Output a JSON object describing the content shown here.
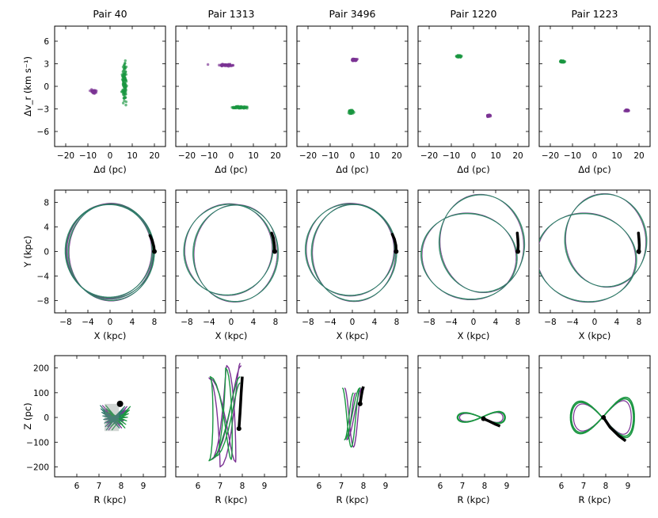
{
  "colors": {
    "purple": "#7b3294",
    "green": "#1a9641",
    "teal": "#2c7a6e",
    "black": "#000000"
  },
  "chart_data": {
    "type": "scatter",
    "pairs": [
      {
        "title": "Pair 40",
        "row1": {
          "purple": {
            "center": [
              -7.5,
              -0.7
            ],
            "spread": [
              1.2,
              0.25
            ],
            "n": 45
          },
          "green": {
            "center": [
              6.5,
              0.5
            ],
            "spread": [
              1.0,
              2.4
            ],
            "n": 110
          }
        },
        "row2": {
          "ellipses": [
            {
              "cx": 0,
              "cy": 0,
              "rx": 7.9,
              "ry": 7.7,
              "rot": 0
            },
            {
              "cx": 0.2,
              "cy": -0.1,
              "rx": 7.7,
              "ry": 7.9,
              "rot": 0
            },
            {
              "cx": -0.2,
              "cy": 0.1,
              "rx": 7.8,
              "ry": 7.6,
              "rot": 0
            }
          ],
          "arc": {
            "x": [
              7.2,
              7.6,
              7.9,
              8.0
            ],
            "y": [
              2.6,
              1.8,
              0.8,
              0.0
            ]
          },
          "dot": [
            8.0,
            0.0
          ]
        },
        "row3": {
          "shape": "band",
          "dot": [
            7.95,
            55
          ]
        }
      },
      {
        "title": "Pair 1313",
        "row1": {
          "purple": {
            "center": [
              -2.0,
              2.8
            ],
            "spread": [
              2.8,
              0.12
            ],
            "n": 60
          },
          "green": {
            "center": [
              3.5,
              -2.8
            ],
            "spread": [
              3.5,
              0.12
            ],
            "n": 90
          }
        },
        "row2": {
          "ellipses": [
            {
              "cx": -0.5,
              "cy": 0.3,
              "rx": 8.0,
              "ry": 7.4,
              "rot": 0.2
            },
            {
              "cx": 0.8,
              "cy": -0.3,
              "rx": 7.6,
              "ry": 7.9,
              "rot": -0.2
            }
          ],
          "arc": {
            "x": [
              7.3,
              7.6,
              7.8,
              7.85
            ],
            "y": [
              3.0,
              2.2,
              1.0,
              0.0
            ]
          },
          "dot": [
            7.85,
            0.0
          ]
        },
        "row3": {
          "shape": "tall",
          "dot": [
            7.85,
            -45
          ],
          "arc": {
            "x": [
              7.85,
              7.9,
              7.95,
              8.0
            ],
            "y": [
              -45,
              20,
              100,
              165
            ]
          }
        }
      },
      {
        "title": "Pair 3496",
        "row1": {
          "purple": {
            "center": [
              0.8,
              3.5
            ],
            "spread": [
              1.2,
              0.15
            ],
            "n": 50
          },
          "green": {
            "center": [
              -0.5,
              -3.4
            ],
            "spread": [
              1.0,
              0.25
            ],
            "n": 60
          }
        },
        "row2": {
          "ellipses": [
            {
              "cx": -0.4,
              "cy": 0.3,
              "rx": 8.0,
              "ry": 7.5,
              "rot": 0
            },
            {
              "cx": 0.3,
              "cy": -0.2,
              "rx": 7.6,
              "ry": 7.9,
              "rot": 0
            }
          ],
          "arc": {
            "x": [
              7.2,
              7.6,
              7.85,
              7.9
            ],
            "y": [
              2.8,
              2.0,
              1.0,
              0.0
            ]
          },
          "dot": [
            7.9,
            0.0
          ]
        },
        "row3": {
          "shape": "narrow",
          "dot": [
            7.85,
            55
          ],
          "arc": {
            "x": [
              7.85,
              7.9,
              7.95,
              8.0
            ],
            "y": [
              55,
              85,
              110,
              125
            ]
          }
        }
      },
      {
        "title": "Pair 1220",
        "row1": {
          "purple": {
            "center": [
              6.8,
              -3.9
            ],
            "spread": [
              0.8,
              0.12
            ],
            "n": 30
          },
          "green": {
            "center": [
              -6.5,
              4.0
            ],
            "spread": [
              1.0,
              0.15
            ],
            "n": 45
          }
        },
        "row2": {
          "ellipses": [
            {
              "cx": 1.5,
              "cy": 1.3,
              "rx": 7.6,
              "ry": 8.0,
              "rot": 0.3
            },
            {
              "cx": -0.8,
              "cy": -0.8,
              "rx": 8.6,
              "ry": 7.0,
              "rot": -0.1
            }
          ],
          "arc": {
            "x": [
              7.9,
              8.0,
              8.05,
              8.0
            ],
            "y": [
              3.0,
              2.0,
              1.0,
              0.0
            ]
          },
          "dot": [
            8.0,
            0.0
          ]
        },
        "row3": {
          "shape": "figure8",
          "xc": 7.85,
          "xa": 1.05,
          "ya": 20,
          "dot": [
            7.95,
            -5
          ],
          "arc": {
            "x": [
              7.95,
              8.2,
              8.5,
              8.7
            ],
            "y": [
              -5,
              -15,
              -28,
              -35
            ]
          }
        }
      },
      {
        "title": "Pair 1223",
        "row1": {
          "purple": {
            "center": [
              14.5,
              -3.2
            ],
            "spread": [
              0.8,
              0.12
            ],
            "n": 30
          },
          "green": {
            "center": [
              -14.5,
              3.3
            ],
            "spread": [
              1.0,
              0.15
            ],
            "n": 45
          }
        },
        "row2": {
          "ellipses": [
            {
              "cx": 2.0,
              "cy": 1.8,
              "rx": 7.3,
              "ry": 7.6,
              "rot": 0.3
            },
            {
              "cx": -1.5,
              "cy": -1.0,
              "rx": 9.0,
              "ry": 7.2,
              "rot": -0.1
            }
          ],
          "arc": {
            "x": [
              7.9,
              8.0,
              8.05,
              8.0
            ],
            "y": [
              3.0,
              2.0,
              1.0,
              -0.2
            ]
          },
          "dot": [
            7.95,
            0.0
          ]
        },
        "row3": {
          "shape": "figure8",
          "xc": 7.85,
          "xa": 1.4,
          "ya": 68,
          "dot": [
            7.9,
            0
          ],
          "arc": {
            "x": [
              7.9,
              8.2,
              8.6,
              8.9
            ],
            "y": [
              0,
              -40,
              -75,
              -95
            ]
          }
        }
      }
    ],
    "rows": [
      {
        "xlabel": "Δd (pc)",
        "ylabel": "Δv_r (km s⁻¹)",
        "xlim": [
          -25,
          25
        ],
        "ylim": [
          -8,
          8
        ],
        "xticks": [
          -20,
          -10,
          0,
          10,
          20
        ],
        "yticks": [
          -6,
          -3,
          0,
          3,
          6
        ],
        "xticklabels": [
          "−20",
          "−10",
          "0",
          "10",
          "20"
        ],
        "yticklabels": [
          "−6",
          "−3",
          "0",
          "3",
          "6"
        ]
      },
      {
        "xlabel": "X (kpc)",
        "ylabel": "Y (kpc)",
        "xlim": [
          -10,
          10
        ],
        "ylim": [
          -10,
          10
        ],
        "xticks": [
          -8,
          -4,
          0,
          4,
          8
        ],
        "yticks": [
          -8,
          -4,
          0,
          4,
          8
        ],
        "xticklabels": [
          "−8",
          "−4",
          "0",
          "4",
          "8"
        ],
        "yticklabels": [
          "−8",
          "−4",
          "0",
          "4",
          "8"
        ]
      },
      {
        "xlabel": "R (kpc)",
        "ylabel": "Z (pc)",
        "xlim": [
          5,
          10
        ],
        "ylim": [
          -240,
          250
        ],
        "xticks": [
          6,
          7,
          8,
          9
        ],
        "yticks": [
          -200,
          -100,
          0,
          100,
          200
        ],
        "xticklabels": [
          "6",
          "7",
          "8",
          "9"
        ],
        "yticklabels": [
          "−200",
          "−100",
          "0",
          "100",
          "200"
        ]
      }
    ]
  }
}
